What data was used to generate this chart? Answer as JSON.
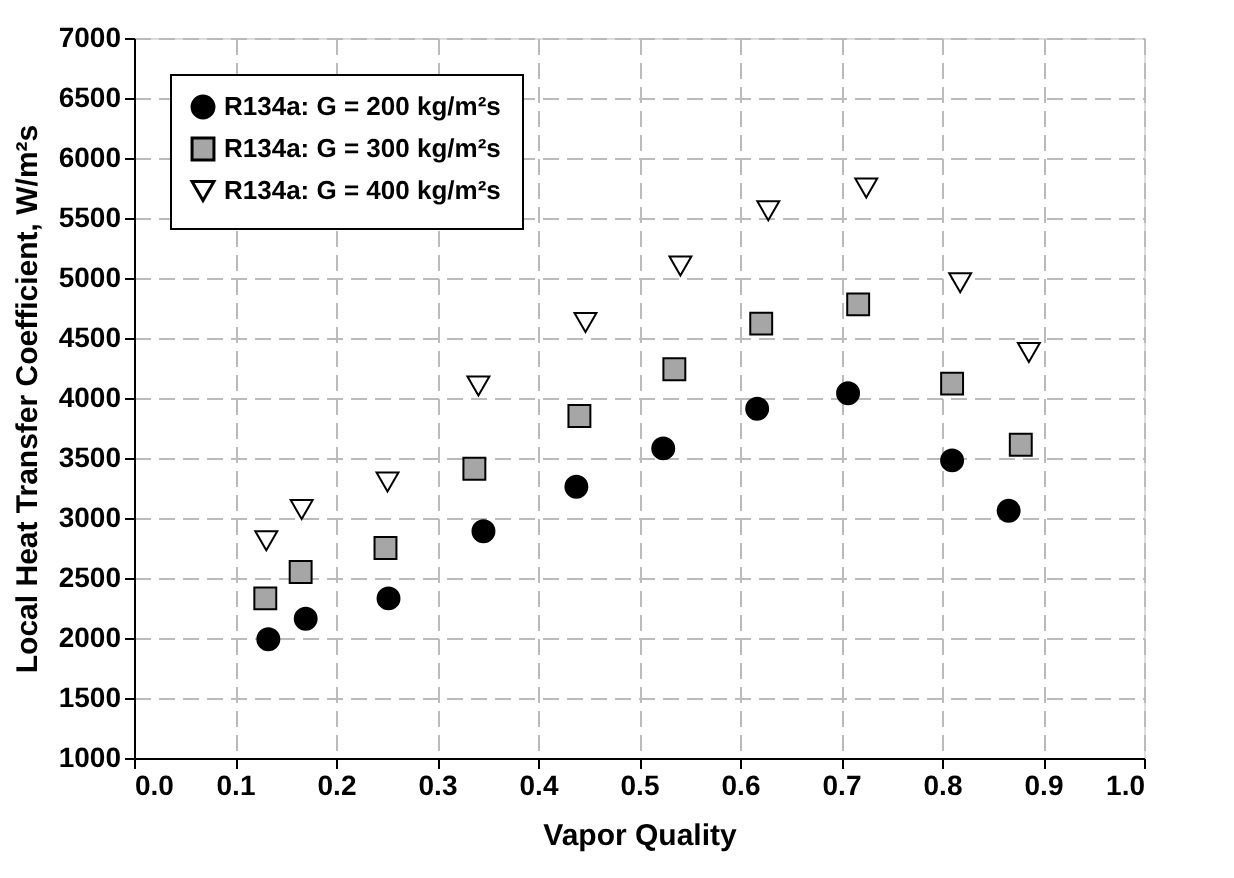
{
  "chart_data": {
    "type": "scatter",
    "xlabel": "Vapor Quality",
    "ylabel": "Local Heat Transfer Coefficient, W/m²s",
    "xlim": [
      0.0,
      1.0
    ],
    "xticks": [
      {
        "value": 0,
        "label": "0.0"
      },
      0.1,
      0.2,
      0.3,
      0.4,
      0.5,
      0.6,
      0.7,
      0.8,
      0.9,
      {
        "value": 1,
        "label": "1.0"
      }
    ],
    "ylim": [
      1000,
      7000
    ],
    "yticks": [
      1000,
      1500,
      2000,
      2500,
      3000,
      3500,
      4000,
      4500,
      5000,
      5500,
      6000,
      6500,
      7000
    ],
    "grid": true,
    "legend": "top left",
    "series": [
      {
        "name": "R134a: G = 200 kg/m²s",
        "color": "#000000",
        "marker": "circle",
        "x": [
          0.133,
          0.17,
          0.252,
          0.346,
          0.438,
          0.524,
          0.617,
          0.707,
          0.81,
          0.866
        ],
        "values": [
          1990,
          2160,
          2330,
          2890,
          3260,
          3580,
          3910,
          4040,
          3480,
          3060
        ]
      },
      {
        "name": "R134a: G = 300 kg/m²s",
        "color": "#a6a6a6",
        "marker": "square",
        "x": [
          0.13,
          0.165,
          0.249,
          0.337,
          0.441,
          0.535,
          0.621,
          0.717,
          0.81,
          0.878
        ],
        "values": [
          2330,
          2550,
          2750,
          3410,
          3850,
          4240,
          4620,
          4780,
          4120,
          3610
        ]
      },
      {
        "name": "R134a: G = 400 kg/m²s",
        "color": "#ffffff",
        "marker": "triangle",
        "x": [
          0.131,
          0.166,
          0.251,
          0.341,
          0.447,
          0.541,
          0.628,
          0.725,
          0.818,
          0.886
        ],
        "values": [
          2810,
          3070,
          3300,
          4100,
          4630,
          5100,
          5560,
          5750,
          4960,
          4380
        ]
      }
    ]
  }
}
